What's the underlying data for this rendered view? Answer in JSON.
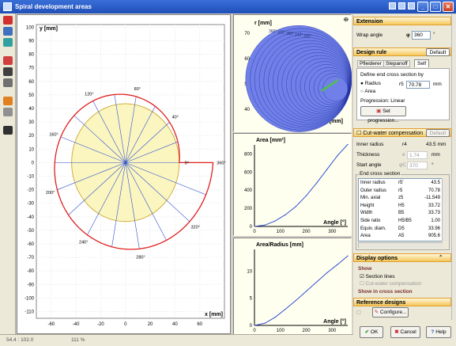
{
  "window": {
    "title": "Spiral development areas"
  },
  "main_plot": {
    "ylabel": "y [mm]",
    "xlabel": "x [mm]",
    "x_ticks": [
      "-60",
      "-40",
      "-20",
      "0",
      "20",
      "40",
      "60"
    ],
    "y_ticks": [
      "100",
      "90",
      "80",
      "70",
      "60",
      "50",
      "40",
      "30",
      "20",
      "10",
      "0",
      "-10",
      "-20",
      "-30",
      "-40",
      "-50",
      "-60",
      "-70",
      "-80",
      "-90",
      "-100",
      "-110"
    ],
    "angle_labels": [
      "0°",
      "40°",
      "80°",
      "120°",
      "160°",
      "200°",
      "240°",
      "280°",
      "320°",
      "360°"
    ]
  },
  "top_plot": {
    "pin": "ⴲ",
    "ylabel": "r [mm]",
    "zlabel": "z [mm]",
    "y_ticks": [
      "70",
      "60",
      "50",
      "40"
    ],
    "angle_labels": [
      "360°",
      "320°",
      "280°",
      "240°",
      "200°"
    ]
  },
  "area_plot": {
    "title": "Area [mm²]",
    "xlabel": "Angle [°]",
    "y_ticks": [
      "800",
      "600",
      "400",
      "200",
      "0"
    ],
    "x_ticks": [
      "0",
      "100",
      "200",
      "300"
    ]
  },
  "radius_plot": {
    "title": "Area/Radius [mm]",
    "xlabel": "Angle [°]",
    "y_ticks": [
      "10",
      "5",
      "0"
    ],
    "x_ticks": [
      "0",
      "100",
      "200",
      "300"
    ]
  },
  "chart_data": [
    {
      "type": "line",
      "title": "Area [mm²]",
      "xlabel": "Angle [°]",
      "ylabel": "",
      "xlim": [
        0,
        360
      ],
      "ylim": [
        0,
        900
      ],
      "x": [
        0,
        40,
        80,
        120,
        160,
        200,
        240,
        280,
        320,
        360
      ],
      "series": [
        {
          "values": [
            0,
            15,
            60,
            130,
            220,
            340,
            480,
            630,
            780,
            905
          ]
        }
      ]
    },
    {
      "type": "line",
      "title": "Area/Radius [mm]",
      "xlabel": "Angle [°]",
      "ylabel": "",
      "xlim": [
        0,
        360
      ],
      "ylim": [
        0,
        14
      ],
      "x": [
        0,
        40,
        80,
        120,
        160,
        200,
        240,
        280,
        320,
        360
      ],
      "series": [
        {
          "values": [
            0,
            0.4,
            1.5,
            3.0,
            4.6,
            6.3,
            8.0,
            9.7,
            11.2,
            12.8
          ]
        }
      ]
    }
  ],
  "panel": {
    "extension": {
      "header": "Extension",
      "wrap_angle_label": "Wrap angle",
      "wrap_angle_symbol": "φ",
      "wrap_angle_value": "360",
      "wrap_angle_unit": "°"
    },
    "design_rule": {
      "header": "Design rule",
      "default_btn": "Default",
      "tabs": [
        "Pfleiderer",
        "Stepanoff",
        "Self"
      ],
      "define_label": "Define end cross section by",
      "radius_label": "Radius",
      "area_label": "Area",
      "r5_label": "r5",
      "r5_value": "70.78",
      "r5_unit": "mm",
      "progression_label": "Progression: Linear",
      "set_progression_btn": "Set progression..."
    },
    "cutwater": {
      "checkbox_label": "Cut-water compensation",
      "default_btn": "Default",
      "inner_radius_label": "Inner radius",
      "inner_radius_sym": "r4",
      "inner_radius_value": "43.5 mm",
      "thickness_label": "Thickness",
      "thickness_sym": "e",
      "thickness_value": "1.74",
      "thickness_unit": "mm",
      "start_angle_label": "Start angle",
      "start_angle_sym": "φC",
      "start_angle_value": "370",
      "start_angle_unit": "°"
    },
    "end_cross_section": {
      "title": "End cross section",
      "rows": [
        {
          "name": "Inner radius",
          "sym": "r5'",
          "val": "43.5"
        },
        {
          "name": "Outer radius",
          "sym": "r5",
          "val": "70.78"
        },
        {
          "name": "Min. axial",
          "sym": "z5",
          "val": "-11.549"
        },
        {
          "name": "Height",
          "sym": "H5",
          "val": "33.72"
        },
        {
          "name": "Width",
          "sym": "B5",
          "val": "33.73"
        },
        {
          "name": "Side ratio",
          "sym": "H5/B5",
          "val": "1.00"
        },
        {
          "name": "Equiv. diam.",
          "sym": "D5",
          "val": "33.96"
        },
        {
          "name": "Area",
          "sym": "A5",
          "val": "905.6"
        }
      ]
    },
    "display": {
      "header": "Display options",
      "show_title": "Show",
      "section_lines": "Section lines",
      "cutwater_comp": "Cut-water compensation",
      "show_in_cross": "Show in cross section"
    },
    "reference": {
      "header": "Reference designs",
      "configure_btn": "Configure..."
    },
    "buttons": {
      "ok": "OK",
      "cancel": "Cancel",
      "help": "Help"
    }
  },
  "status": {
    "coords": "54.4 : 102.0",
    "zoom": "111 %"
  },
  "colors": {
    "spiral": "#e02020",
    "circle_fill": "#fbf6c0",
    "curve": "#3050d0",
    "header_grad": "#f5c75a"
  }
}
